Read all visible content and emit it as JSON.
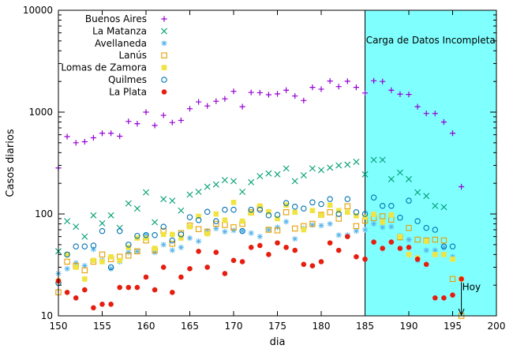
{
  "chart_data": {
    "type": "scatter",
    "title": "",
    "xlabel": "dia",
    "ylabel": "Casos diarios",
    "xlim": [
      150,
      200
    ],
    "ylim": [
      10,
      10000
    ],
    "yscale": "log",
    "xticks": [
      150,
      155,
      160,
      165,
      170,
      175,
      180,
      185,
      190,
      195,
      200
    ],
    "yticks": [
      10,
      100,
      1000,
      10000
    ],
    "legend_position": "top-left",
    "grid": false,
    "shaded_region": {
      "x_from": 185,
      "x_to": 200,
      "color": "#80ffff",
      "label": "Carga de Datos Incompleta"
    },
    "annotation": {
      "text": "Hoy",
      "x": 196,
      "y_from": 23,
      "y_to": 10
    },
    "series": [
      {
        "name": "Buenos Aires",
        "marker": "plus",
        "color": "#9400d3",
        "x": [
          150,
          151,
          152,
          153,
          154,
          155,
          156,
          157,
          158,
          159,
          160,
          161,
          162,
          163,
          164,
          165,
          166,
          167,
          168,
          169,
          170,
          171,
          172,
          173,
          174,
          175,
          176,
          177,
          178,
          179,
          180,
          181,
          182,
          183,
          184,
          185,
          186,
          187,
          188,
          189,
          190,
          191,
          192,
          193,
          194,
          195,
          196
        ],
        "y": [
          283,
          575,
          500,
          512,
          560,
          620,
          620,
          580,
          810,
          770,
          1000,
          740,
          930,
          790,
          830,
          1080,
          1260,
          1150,
          1280,
          1350,
          1600,
          1130,
          1560,
          1550,
          1480,
          1510,
          1640,
          1440,
          1300,
          1750,
          1680,
          2020,
          1780,
          2010,
          1750,
          1540,
          2030,
          2000,
          1640,
          1500,
          1490,
          1130,
          970,
          970,
          800,
          620,
          185
        ]
      },
      {
        "name": "La Matanza",
        "marker": "x",
        "color": "#009e73",
        "x": [
          150,
          151,
          152,
          153,
          154,
          155,
          156,
          157,
          158,
          159,
          160,
          161,
          162,
          163,
          164,
          165,
          166,
          167,
          168,
          169,
          170,
          171,
          172,
          173,
          174,
          175,
          176,
          177,
          178,
          179,
          180,
          181,
          182,
          183,
          184,
          185,
          186,
          187,
          188,
          189,
          190,
          191,
          192,
          193,
          194
        ],
        "y": [
          43,
          85,
          75,
          60,
          97,
          81,
          97,
          73,
          127,
          113,
          163,
          83,
          140,
          135,
          108,
          155,
          165,
          185,
          195,
          215,
          210,
          165,
          205,
          235,
          250,
          245,
          280,
          210,
          240,
          280,
          270,
          285,
          300,
          305,
          325,
          245,
          340,
          340,
          220,
          255,
          220,
          163,
          150,
          120,
          117
        ]
      },
      {
        "name": "Avellaneda",
        "marker": "star",
        "color": "#56b4e9",
        "x": [
          150,
          151,
          152,
          153,
          154,
          155,
          156,
          157,
          158,
          159,
          160,
          161,
          162,
          163,
          164,
          165,
          166,
          167,
          168,
          169,
          170,
          171,
          172,
          173,
          174,
          175,
          176,
          177,
          178,
          179,
          180,
          181,
          182,
          183,
          184,
          185,
          186,
          187,
          188,
          189,
          190,
          191,
          192,
          193,
          194,
          195
        ],
        "y": [
          26,
          29,
          33,
          31,
          45,
          35,
          29,
          34,
          42,
          43,
          62,
          42,
          50,
          44,
          47,
          58,
          54,
          68,
          72,
          67,
          69,
          68,
          65,
          60,
          70,
          74,
          84,
          57,
          72,
          78,
          77,
          80,
          62,
          62,
          68,
          70,
          80,
          74,
          75,
          61,
          56,
          35,
          44,
          44,
          47,
          38
        ]
      },
      {
        "name": "Lanús",
        "marker": "square-open",
        "color": "#e69f00",
        "x": [
          150,
          151,
          152,
          153,
          154,
          155,
          156,
          157,
          158,
          159,
          160,
          161,
          162,
          163,
          164,
          165,
          166,
          167,
          168,
          169,
          170,
          171,
          172,
          173,
          174,
          175,
          176,
          177,
          178,
          179,
          180,
          181,
          182,
          183,
          184,
          185,
          186,
          187,
          188,
          189,
          190,
          191,
          192,
          193,
          194,
          195,
          196
        ],
        "y": [
          17,
          34,
          31,
          28,
          34,
          40,
          36,
          38,
          39,
          43,
          55,
          44,
          68,
          51,
          65,
          77,
          71,
          67,
          80,
          78,
          74,
          80,
          104,
          114,
          70,
          69,
          104,
          72,
          76,
          80,
          98,
          104,
          90,
          119,
          76,
          86,
          91,
          95,
          88,
          59,
          73,
          56,
          55,
          56,
          55,
          23,
          10
        ]
      },
      {
        "name": "Lomas de Zamora",
        "marker": "square-filled",
        "color": "#f0e442",
        "x": [
          150,
          151,
          152,
          153,
          154,
          155,
          156,
          157,
          158,
          159,
          160,
          161,
          162,
          163,
          164,
          165,
          166,
          167,
          168,
          169,
          170,
          171,
          172,
          173,
          174,
          175,
          176,
          177,
          178,
          179,
          180,
          181,
          182,
          183,
          184,
          185,
          186,
          187,
          188,
          189,
          190,
          191,
          192,
          193,
          194,
          195,
          196
        ],
        "y": [
          22,
          40,
          30,
          23,
          35,
          34,
          38,
          35,
          47,
          58,
          58,
          46,
          63,
          63,
          58,
          75,
          95,
          64,
          100,
          87,
          130,
          85,
          102,
          120,
          105,
          90,
          122,
          104,
          70,
          108,
          97,
          122,
          108,
          104,
          96,
          93,
          99,
          83,
          98,
          60,
          40,
          37,
          54,
          40,
          40,
          36,
          23
        ]
      },
      {
        "name": "Quilmes",
        "marker": "circle-open",
        "color": "#0072b2",
        "x": [
          150,
          151,
          152,
          153,
          154,
          155,
          156,
          157,
          158,
          159,
          160,
          161,
          162,
          163,
          164,
          165,
          166,
          167,
          168,
          169,
          170,
          171,
          172,
          173,
          174,
          175,
          176,
          177,
          178,
          179,
          180,
          181,
          182,
          183,
          184,
          185,
          186,
          187,
          188,
          189,
          190,
          191,
          192,
          193,
          194,
          195
        ],
        "y": [
          21,
          40,
          48,
          48,
          49,
          68,
          30,
          68,
          50,
          61,
          62,
          62,
          75,
          55,
          63,
          93,
          87,
          105,
          85,
          110,
          110,
          68,
          110,
          110,
          97,
          98,
          128,
          118,
          113,
          130,
          125,
          140,
          100,
          140,
          104,
          100,
          145,
          120,
          120,
          92,
          135,
          85,
          73,
          70,
          48,
          48
        ]
      },
      {
        "name": "La Plata",
        "marker": "circle-filled",
        "color": "#e51e10",
        "x": [
          150,
          151,
          152,
          153,
          154,
          155,
          156,
          157,
          158,
          159,
          160,
          161,
          162,
          163,
          164,
          165,
          166,
          167,
          168,
          169,
          170,
          171,
          172,
          173,
          174,
          175,
          176,
          177,
          178,
          179,
          180,
          181,
          182,
          183,
          184,
          185,
          186,
          187,
          188,
          189,
          190,
          191,
          192,
          193,
          194,
          195,
          196
        ],
        "y": [
          22,
          17,
          15,
          18,
          12,
          13,
          13,
          19,
          19,
          19,
          24,
          18,
          30,
          17,
          24,
          29,
          43,
          30,
          42,
          26,
          35,
          34,
          47,
          49,
          40,
          52,
          47,
          44,
          32,
          31,
          34,
          52,
          44,
          60,
          38,
          36,
          53,
          46,
          53,
          46,
          47,
          36,
          32,
          15,
          15,
          16,
          23
        ]
      }
    ]
  }
}
